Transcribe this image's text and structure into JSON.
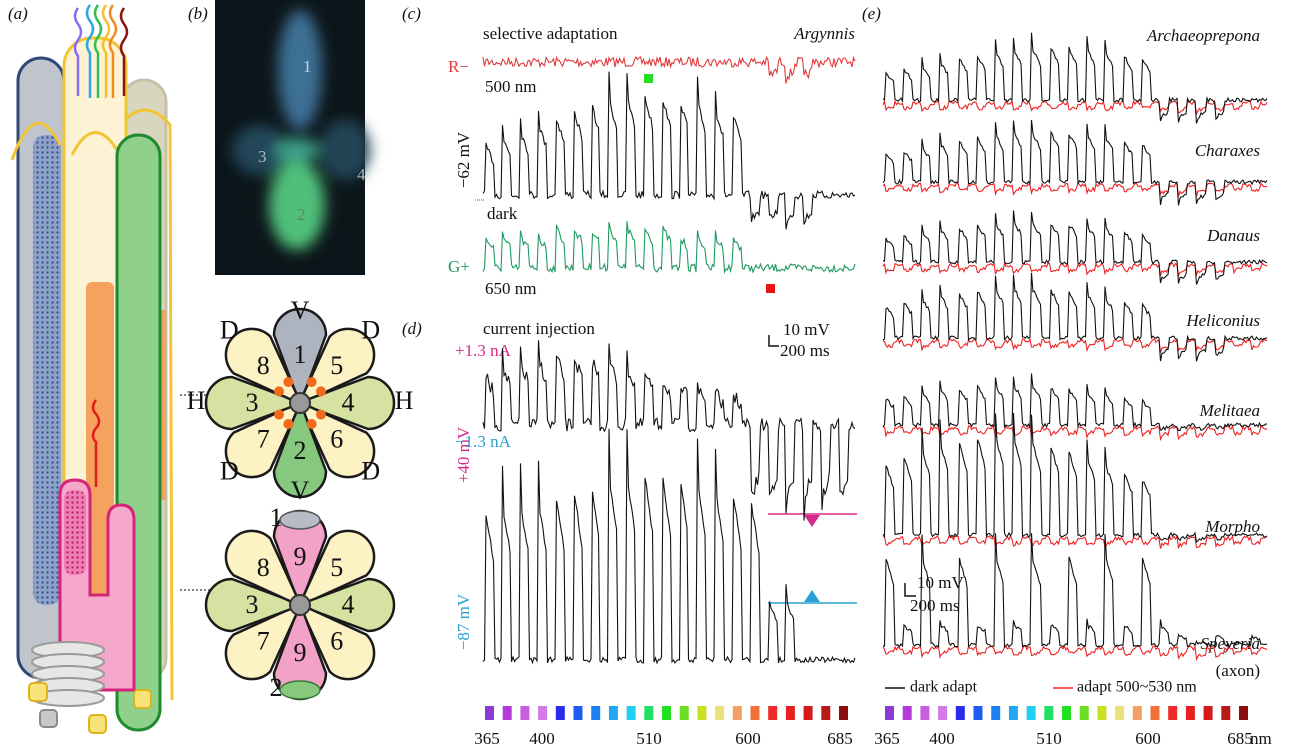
{
  "panel_labels": [
    "(a)",
    "(b)",
    "(c)",
    "(d)",
    "(e)"
  ],
  "b": {
    "photo_cells": [
      "1",
      "2",
      "3",
      "4"
    ],
    "top_diagram": {
      "cells": [
        "1",
        "5",
        "4",
        "6",
        "2",
        "7",
        "3",
        "8"
      ],
      "directions": [
        "V",
        "D",
        "H",
        "D",
        "V",
        "D",
        "H",
        "D"
      ]
    },
    "bottom_diagram": {
      "cells": [
        "9",
        "5",
        "4",
        "6",
        "9",
        "7",
        "3",
        "8"
      ],
      "top_cap": "1",
      "bottom_cap": "2"
    }
  },
  "c": {
    "title": "selective adaptation",
    "species": "Argynnis",
    "top_trace": "R−",
    "top_wavelength": "500 nm",
    "potential": "−62 mV",
    "dark": "dark",
    "bottom_trace": "G+",
    "bottom_wavelength": "650 nm"
  },
  "d": {
    "title": "current injection",
    "scale_voltage": "10 mV",
    "scale_time": "200 ms",
    "positive_current": "+1.3 nA",
    "positive_potential": "+40 mV",
    "negative_current": "−1.3 nA",
    "negative_potential": "−87 mV"
  },
  "e": {
    "species": [
      "Archaeoprepona",
      "Charaxes",
      "Danaus",
      "Heliconius",
      "Melitaea",
      "Morpho",
      "Speyeria"
    ],
    "axon_note": "(axon)",
    "scale_voltage": "10 mV",
    "scale_time": "200 ms",
    "legend": [
      "dark adapt",
      "adapt 500~530 nm"
    ]
  },
  "wavelength_axis": {
    "ticks": [
      365,
      400,
      510,
      600,
      685
    ],
    "unit": "nm"
  }
}
